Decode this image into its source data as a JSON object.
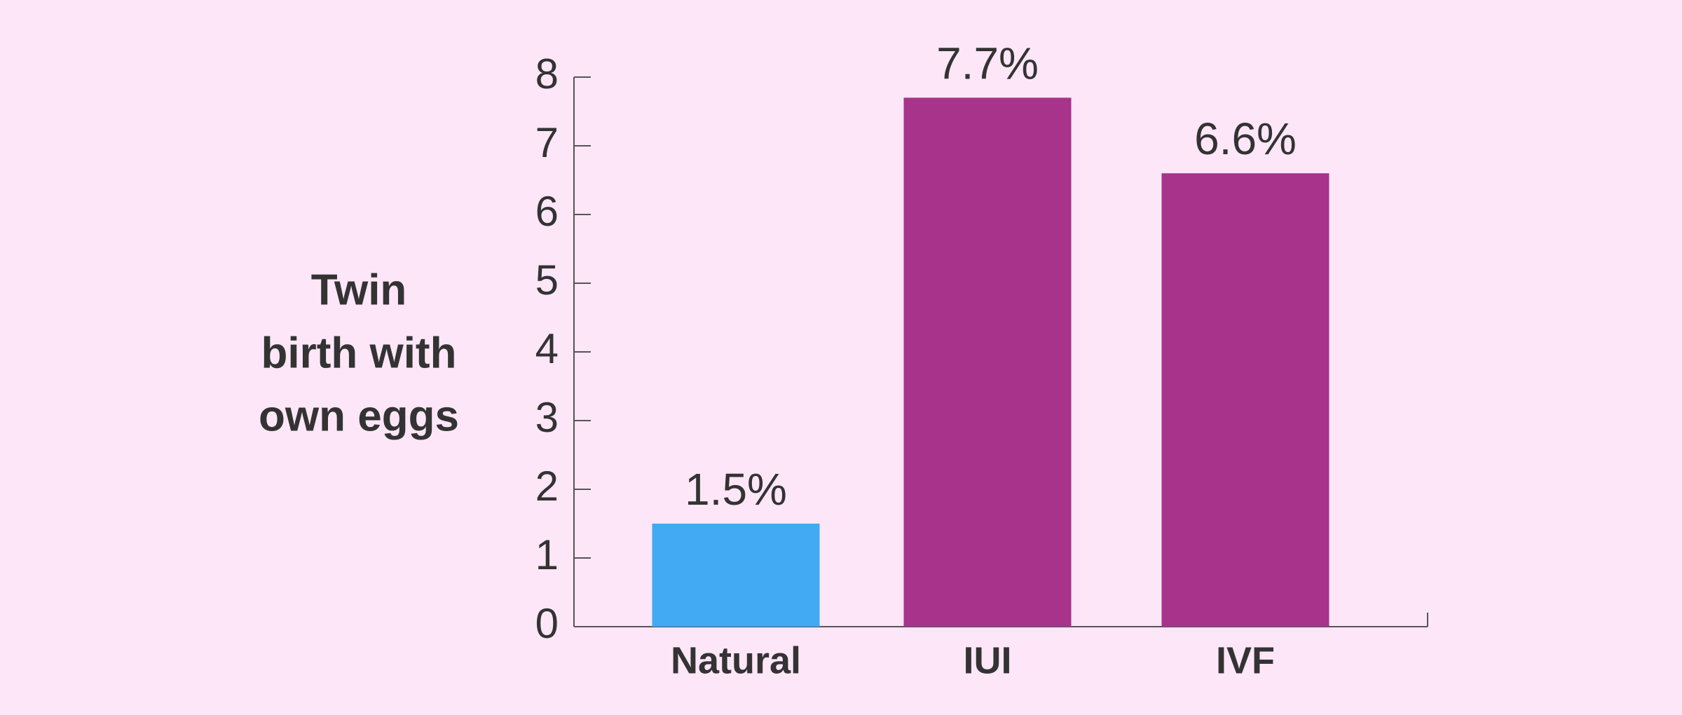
{
  "chart_data": {
    "type": "bar",
    "ylabel": [
      "Twin",
      "birth with",
      "own eggs"
    ],
    "categories": [
      "Natural",
      "IUI",
      "IVF"
    ],
    "values": [
      1.5,
      7.7,
      6.6
    ],
    "value_labels": [
      "1.5%",
      "7.7%",
      "6.6%"
    ],
    "colors": [
      "#42a9f3",
      "#a7338a",
      "#a7338a"
    ],
    "ylim": [
      0,
      8
    ],
    "yticks": [
      0,
      1,
      2,
      3,
      4,
      5,
      6,
      7,
      8
    ],
    "grid": false
  }
}
